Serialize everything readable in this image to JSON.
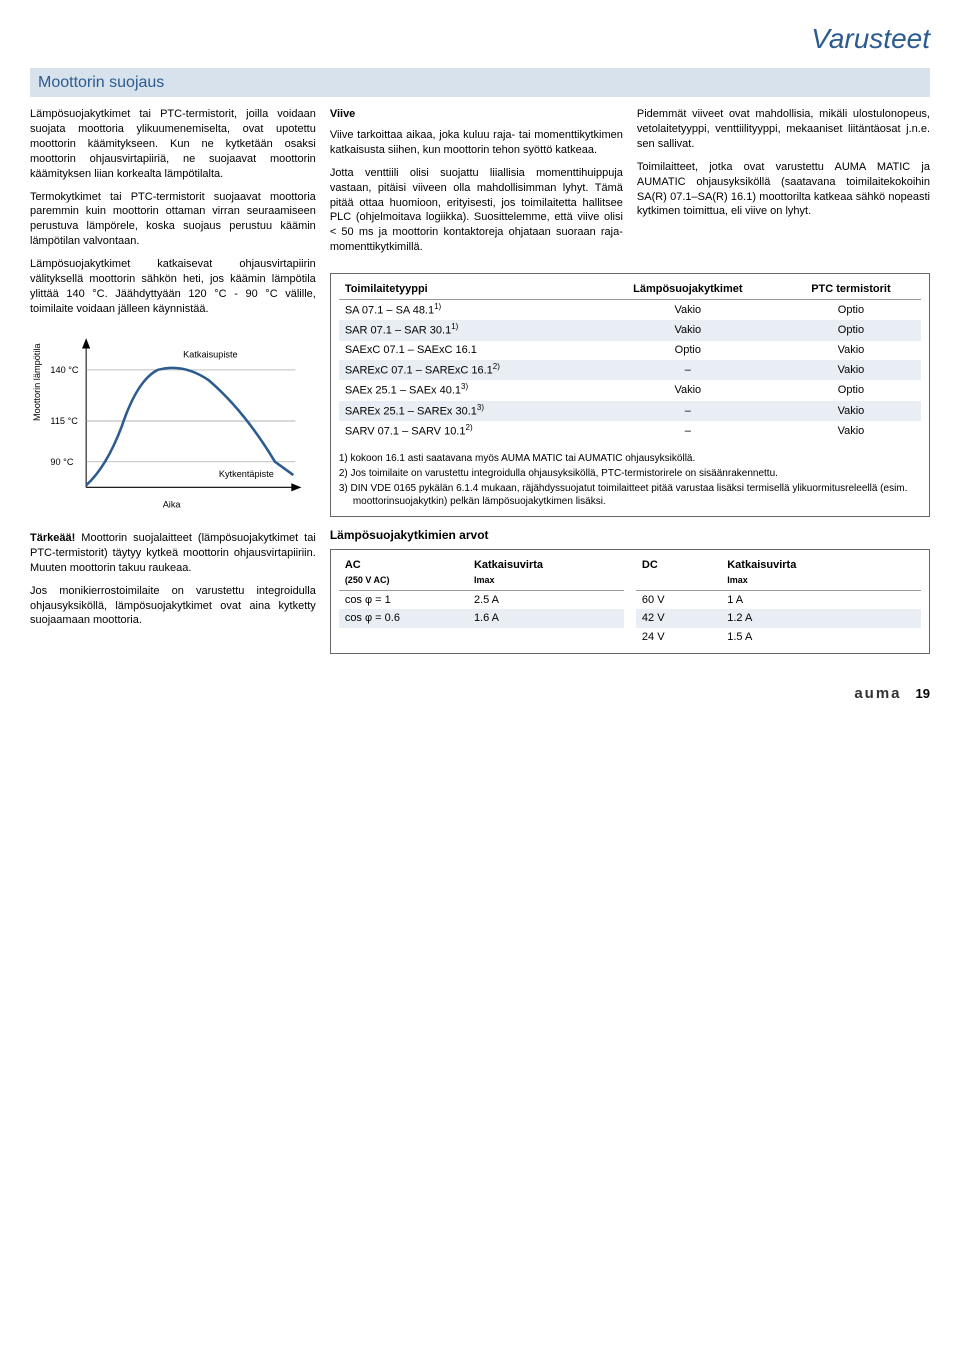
{
  "page_title": "Varusteet",
  "section_header": "Moottorin suojaus",
  "col1": {
    "p1": "Lämpösuojakytkimet tai PTC-termistorit, joilla voidaan suojata moottoria ylikuumenemiselta, ovat upotettu moottorin käämitykseen. Kun ne kytketään osaksi moottorin ohjausvirtapiiriä, ne suojaavat moottorin käämityksen liian korkealta lämpötilalta.",
    "p2": "Termokytkimet tai PTC-termistorit suojaavat moottoria paremmin kuin moottorin ottaman virran seuraamiseen perustuva lämpörele, koska suojaus perustuu käämin lämpötilan valvontaan.",
    "p3": "Lämpösuojakytkimet katkaisevat ohjausvirtapiirin välityksellä moottorin sähkön heti, jos käämin lämpötila ylittää 140 °C. Jäähdyttyään 120 °C - 90 °C välille, toimilaite voidaan jälleen käynnistää.",
    "important_label": "Tärkeää!",
    "important_text": " Moottorin suojalaitteet (lämpösuojakytkimet tai PTC-termistorit) täytyy kytkeä moottorin ohjausvirtapiiriin. Muuten moottorin takuu raukeaa.",
    "p5": "Jos monikierrostoimilaite on varustettu integroidulla ohjausyksiköllä, lämpösuojakytkimet ovat aina kytketty suojaamaan moottoria."
  },
  "col2": {
    "heading": "Viive",
    "p1": "Viive tarkoittaa aikaa, joka kuluu raja- tai momenttikytkimen katkaisusta siihen, kun moottorin tehon syöttö katkeaa.",
    "p2": "Jotta venttiili olisi suojattu liiallisia momenttihuippuja vastaan, pitäisi viiveen olla mahdollisimman lyhyt. Tämä pitää ottaa huomioon, erityisesti, jos toimilaitetta hallitsee PLC (ohjelmoitava logiikka). Suosittelemme, että viive olisi < 50 ms ja moottorin kontaktoreja ohjataan suoraan raja- momenttikytkimillä."
  },
  "col3": {
    "p1": "Pidemmät viiveet ovat mahdollisia, mikäli ulostulonopeus, vetolaitetyyppi, venttiilityyppi, mekaaniset liitäntäosat j.n.e. sen sallivat.",
    "p2": "Toimilaitteet, jotka ovat varustettu AUMA MATIC ja AUMATIC ohjausyksiköllä (saatavana toimilaitekokoihin SA(R) 07.1–SA(R) 16.1) moottorilta katkeaa sähkö nopeasti kytkimen toimittua, eli viive on lyhyt."
  },
  "chart": {
    "y_label": "Moottorin lämpötila",
    "x_label": "Aika",
    "ticks": [
      "140 °C",
      "115 °C",
      "90 °C"
    ],
    "trip_label": "Katkaisupiste",
    "reset_label": "Kytkentäpiste",
    "line_color": "#2b5b8f",
    "grid_color": "#999999",
    "bg": "#ffffff"
  },
  "table1": {
    "headers": [
      "Toimilaitetyyppi",
      "Lämpösuojakytkimet",
      "PTC termistorit"
    ],
    "rows": [
      [
        "SA 07.1 – SA 48.1",
        "1)",
        "Vakio",
        "Optio"
      ],
      [
        "SAR 07.1 – SAR 30.1",
        "1)",
        "Vakio",
        "Optio"
      ],
      [
        "SAExC 07.1 – SAExC 16.1",
        "",
        "Optio",
        "Vakio"
      ],
      [
        "SARExC 07.1 – SARExC 16.1",
        "2)",
        "–",
        "Vakio"
      ],
      [
        "SAEx 25.1 – SAEx 40.1",
        "3)",
        "Vakio",
        "Optio"
      ],
      [
        "SAREx 25.1 – SAREx 30.1",
        "3)",
        "–",
        "Vakio"
      ],
      [
        "SARV 07.1 – SARV 10.1",
        "2)",
        "–",
        "Vakio"
      ]
    ]
  },
  "notes": {
    "n1": "1) kokoon 16.1 asti saatavana myös AUMA MATIC tai AUMATIC ohjausyksiköllä.",
    "n2": "2) Jos toimilaite on varustettu integroidulla ohjausyksiköllä, PTC-termistorirele on sisäänrakennettu.",
    "n3": "3) DIN VDE 0165 pykälän 6.1.4 mukaan, räjähdyssuojatut toimilaitteet pitää varustaa lisäksi termisellä ylikuormitusreleellä (esim. moottorinsuojakytkin) pelkän lämpösuojakytkimen lisäksi."
  },
  "ratings_title": "Lämpösuojakytkimien arvot",
  "table2a": {
    "h1": "AC",
    "h1b": "(250 V AC)",
    "h2": "Katkaisuvirta",
    "h2b": "Imax",
    "rows": [
      [
        "cos φ = 1",
        "2.5 A"
      ],
      [
        "cos φ = 0.6",
        "1.6 A"
      ]
    ]
  },
  "table2b": {
    "h1": "DC",
    "h2": "Katkaisuvirta",
    "h2b": "Imax",
    "rows": [
      [
        "60 V",
        "1 A"
      ],
      [
        "42 V",
        "1.2 A"
      ],
      [
        "24 V",
        "1.5 A"
      ]
    ]
  },
  "footer": {
    "brand": "auma",
    "page": "19"
  }
}
